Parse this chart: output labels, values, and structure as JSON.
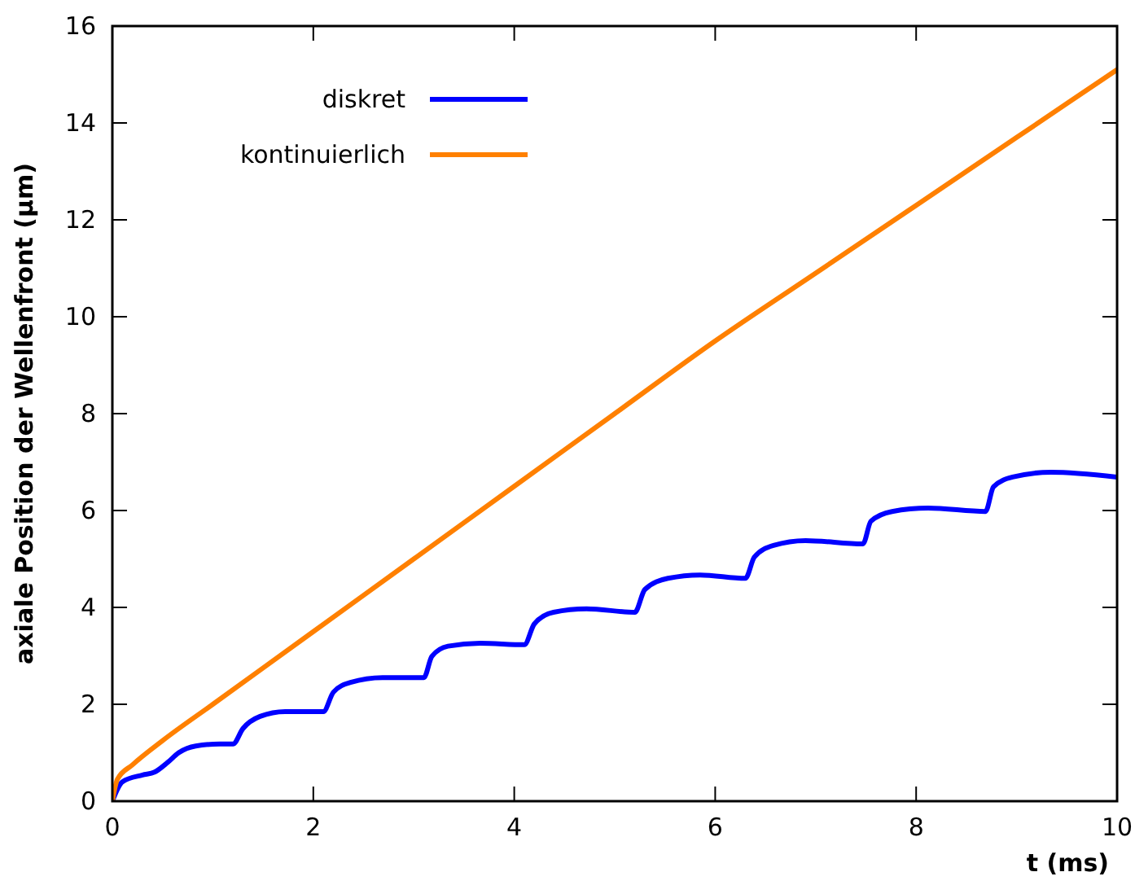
{
  "chart_data": {
    "type": "line",
    "xlabel": "t (ms)",
    "ylabel": "axiale Position der Wellenfront (µm)",
    "xlim": [
      0,
      10
    ],
    "ylim": [
      0,
      16
    ],
    "xticks": [
      0,
      2,
      4,
      6,
      8,
      10
    ],
    "yticks": [
      0,
      2,
      4,
      6,
      8,
      10,
      12,
      14,
      16
    ],
    "legend": "top left",
    "grid": false,
    "marker": "none",
    "line_style": "solid",
    "series": [
      {
        "name": "diskret",
        "color": "#0000ff",
        "x": [
          0,
          0.1,
          0.3,
          0.42,
          0.55,
          0.66,
          0.83,
          1.07,
          1.2,
          1.3,
          1.47,
          1.72,
          2.04,
          2.1,
          2.2,
          2.37,
          2.69,
          3.1,
          3.18,
          3.34,
          3.66,
          4.1,
          4.2,
          4.39,
          4.72,
          5.2,
          5.3,
          5.53,
          5.85,
          6.3,
          6.39,
          6.58,
          6.9,
          7.47,
          7.55,
          7.76,
          8.12,
          8.69,
          8.77,
          8.96,
          9.34,
          10
        ],
        "values": [
          0,
          0.4,
          0.54,
          0.6,
          0.8,
          1.0,
          1.14,
          1.18,
          1.18,
          1.5,
          1.75,
          1.85,
          1.85,
          1.85,
          2.25,
          2.45,
          2.55,
          2.55,
          2.99,
          3.2,
          3.26,
          3.23,
          3.66,
          3.9,
          3.97,
          3.9,
          4.37,
          4.6,
          4.67,
          4.6,
          5.04,
          5.28,
          5.38,
          5.31,
          5.78,
          5.98,
          6.05,
          5.98,
          6.49,
          6.69,
          6.79,
          6.69
        ]
      },
      {
        "name": "kontinuierlich",
        "color": "#ff8000",
        "x": [
          0,
          0.05,
          0.2,
          0.5,
          1,
          2,
          3,
          4,
          5,
          6,
          7,
          8,
          9,
          10
        ],
        "values": [
          0,
          0.45,
          0.75,
          1.25,
          2.0,
          3.5,
          5.0,
          6.5,
          8.0,
          9.5,
          10.9,
          12.3,
          13.7,
          15.1
        ]
      }
    ]
  }
}
